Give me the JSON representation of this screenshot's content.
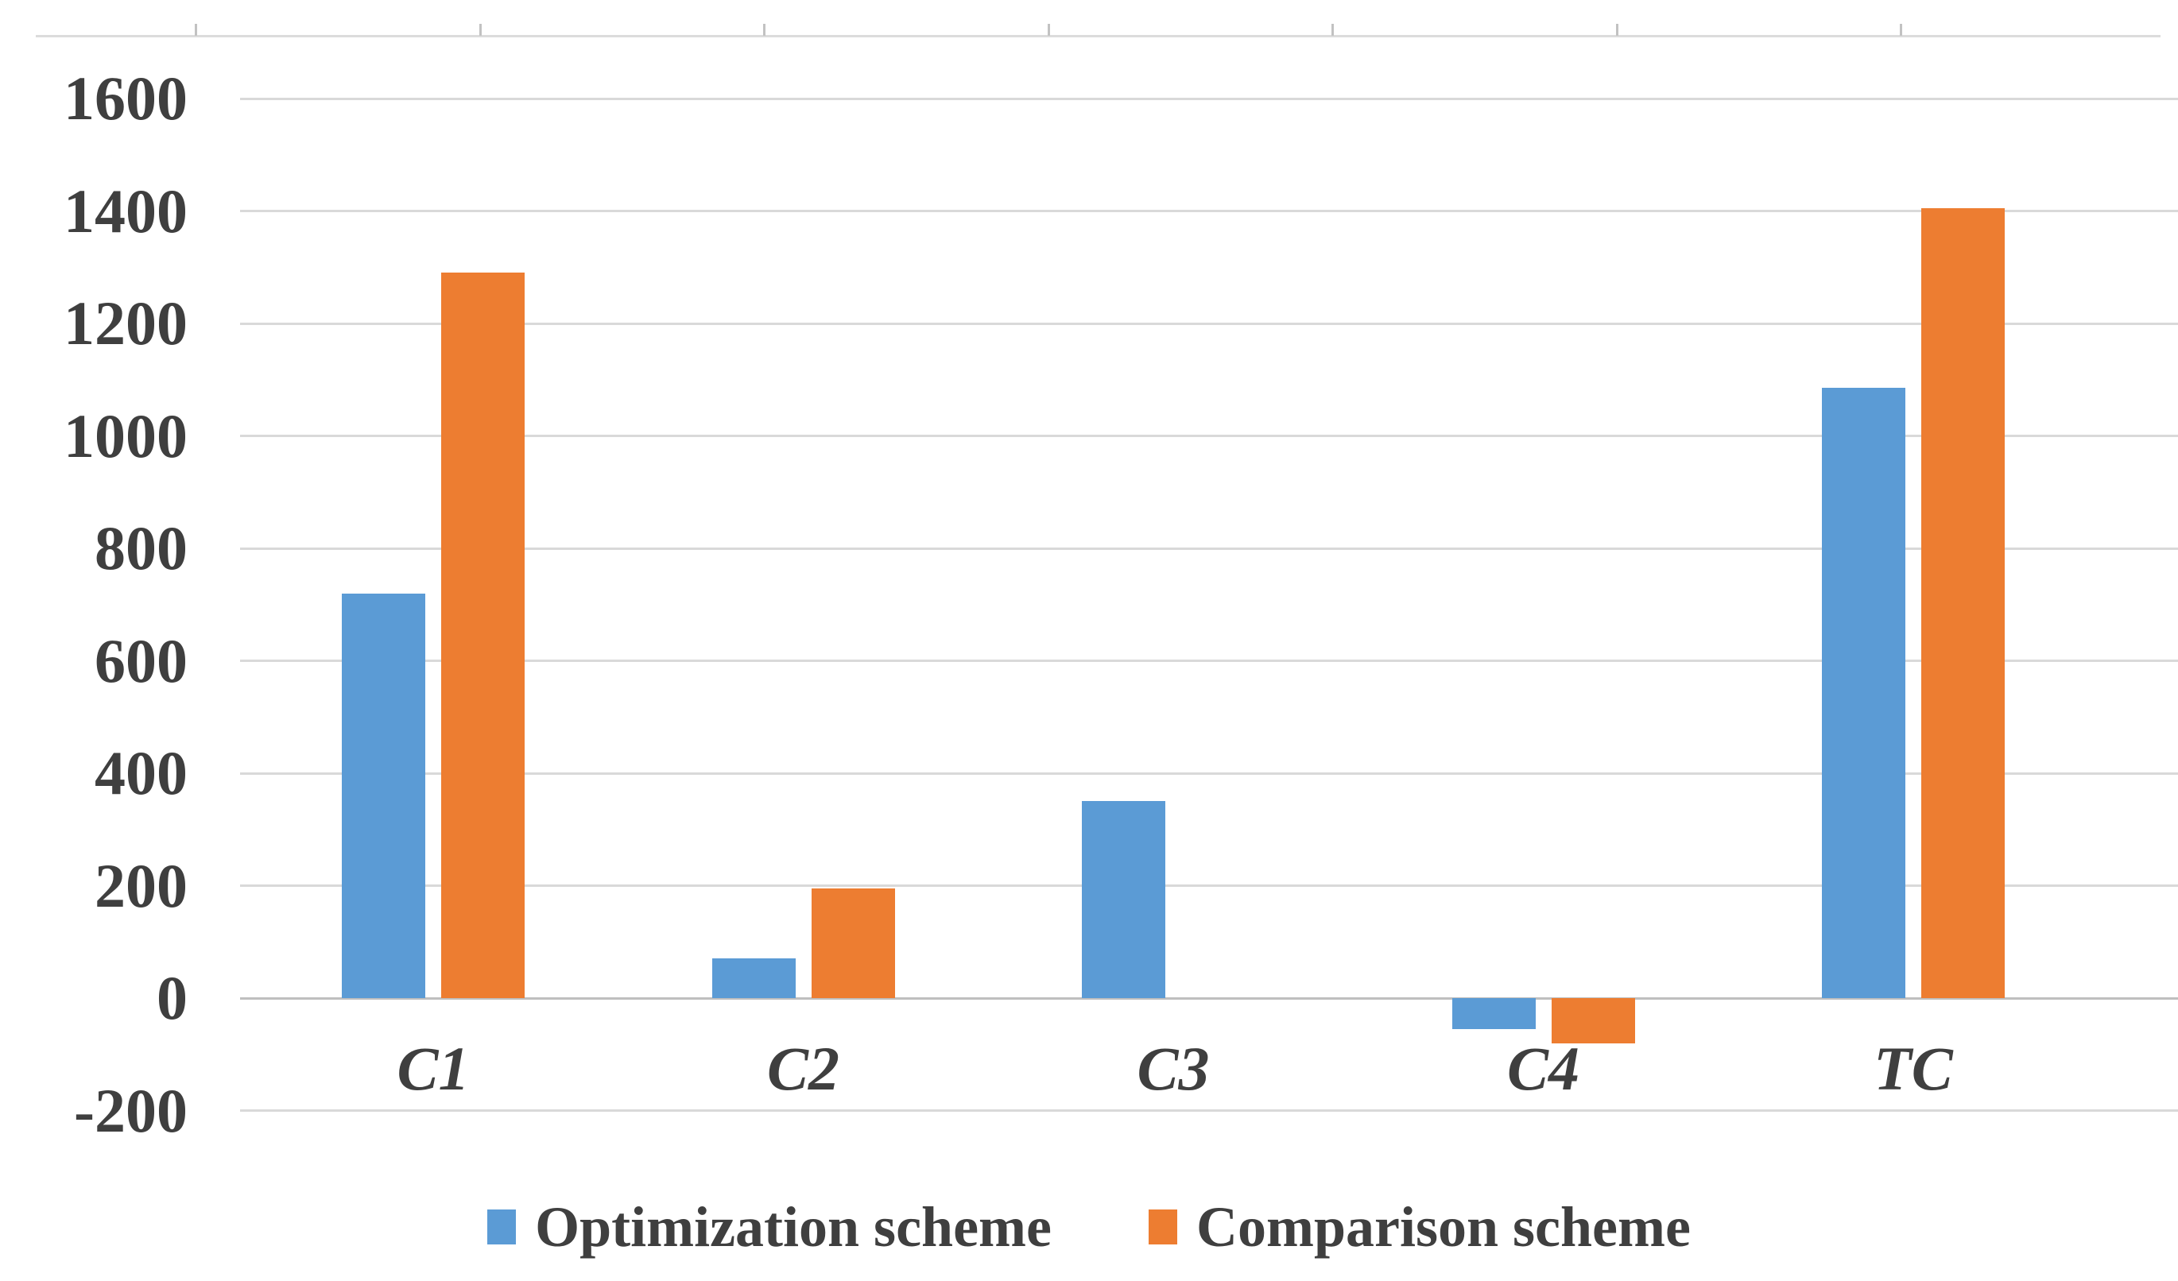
{
  "chart_data": {
    "type": "bar",
    "title": "",
    "xlabel": "",
    "ylabel": "",
    "categories": [
      "C1",
      "C2",
      "C3",
      "C4",
      "TC"
    ],
    "series": [
      {
        "name": "Optimization scheme",
        "color": "#5B9BD5",
        "values": [
          720,
          70,
          350,
          -55,
          1085
        ]
      },
      {
        "name": "Comparison scheme",
        "color": "#ED7D31",
        "values": [
          1290,
          195,
          0,
          -80,
          1405
        ]
      }
    ],
    "y_axis": {
      "min": -200,
      "max": 1600,
      "tick_step": 200,
      "tick_labels": [
        "1600",
        "1400",
        "1200",
        "1000",
        "800",
        "600",
        "400",
        "200",
        "0",
        "-200"
      ]
    },
    "grid": "horizontal",
    "gridline_color": "#D9D9D9",
    "zero_line_color": "#BFBFBF",
    "text_color": "#3F3F3F",
    "legend_position": "bottom"
  }
}
